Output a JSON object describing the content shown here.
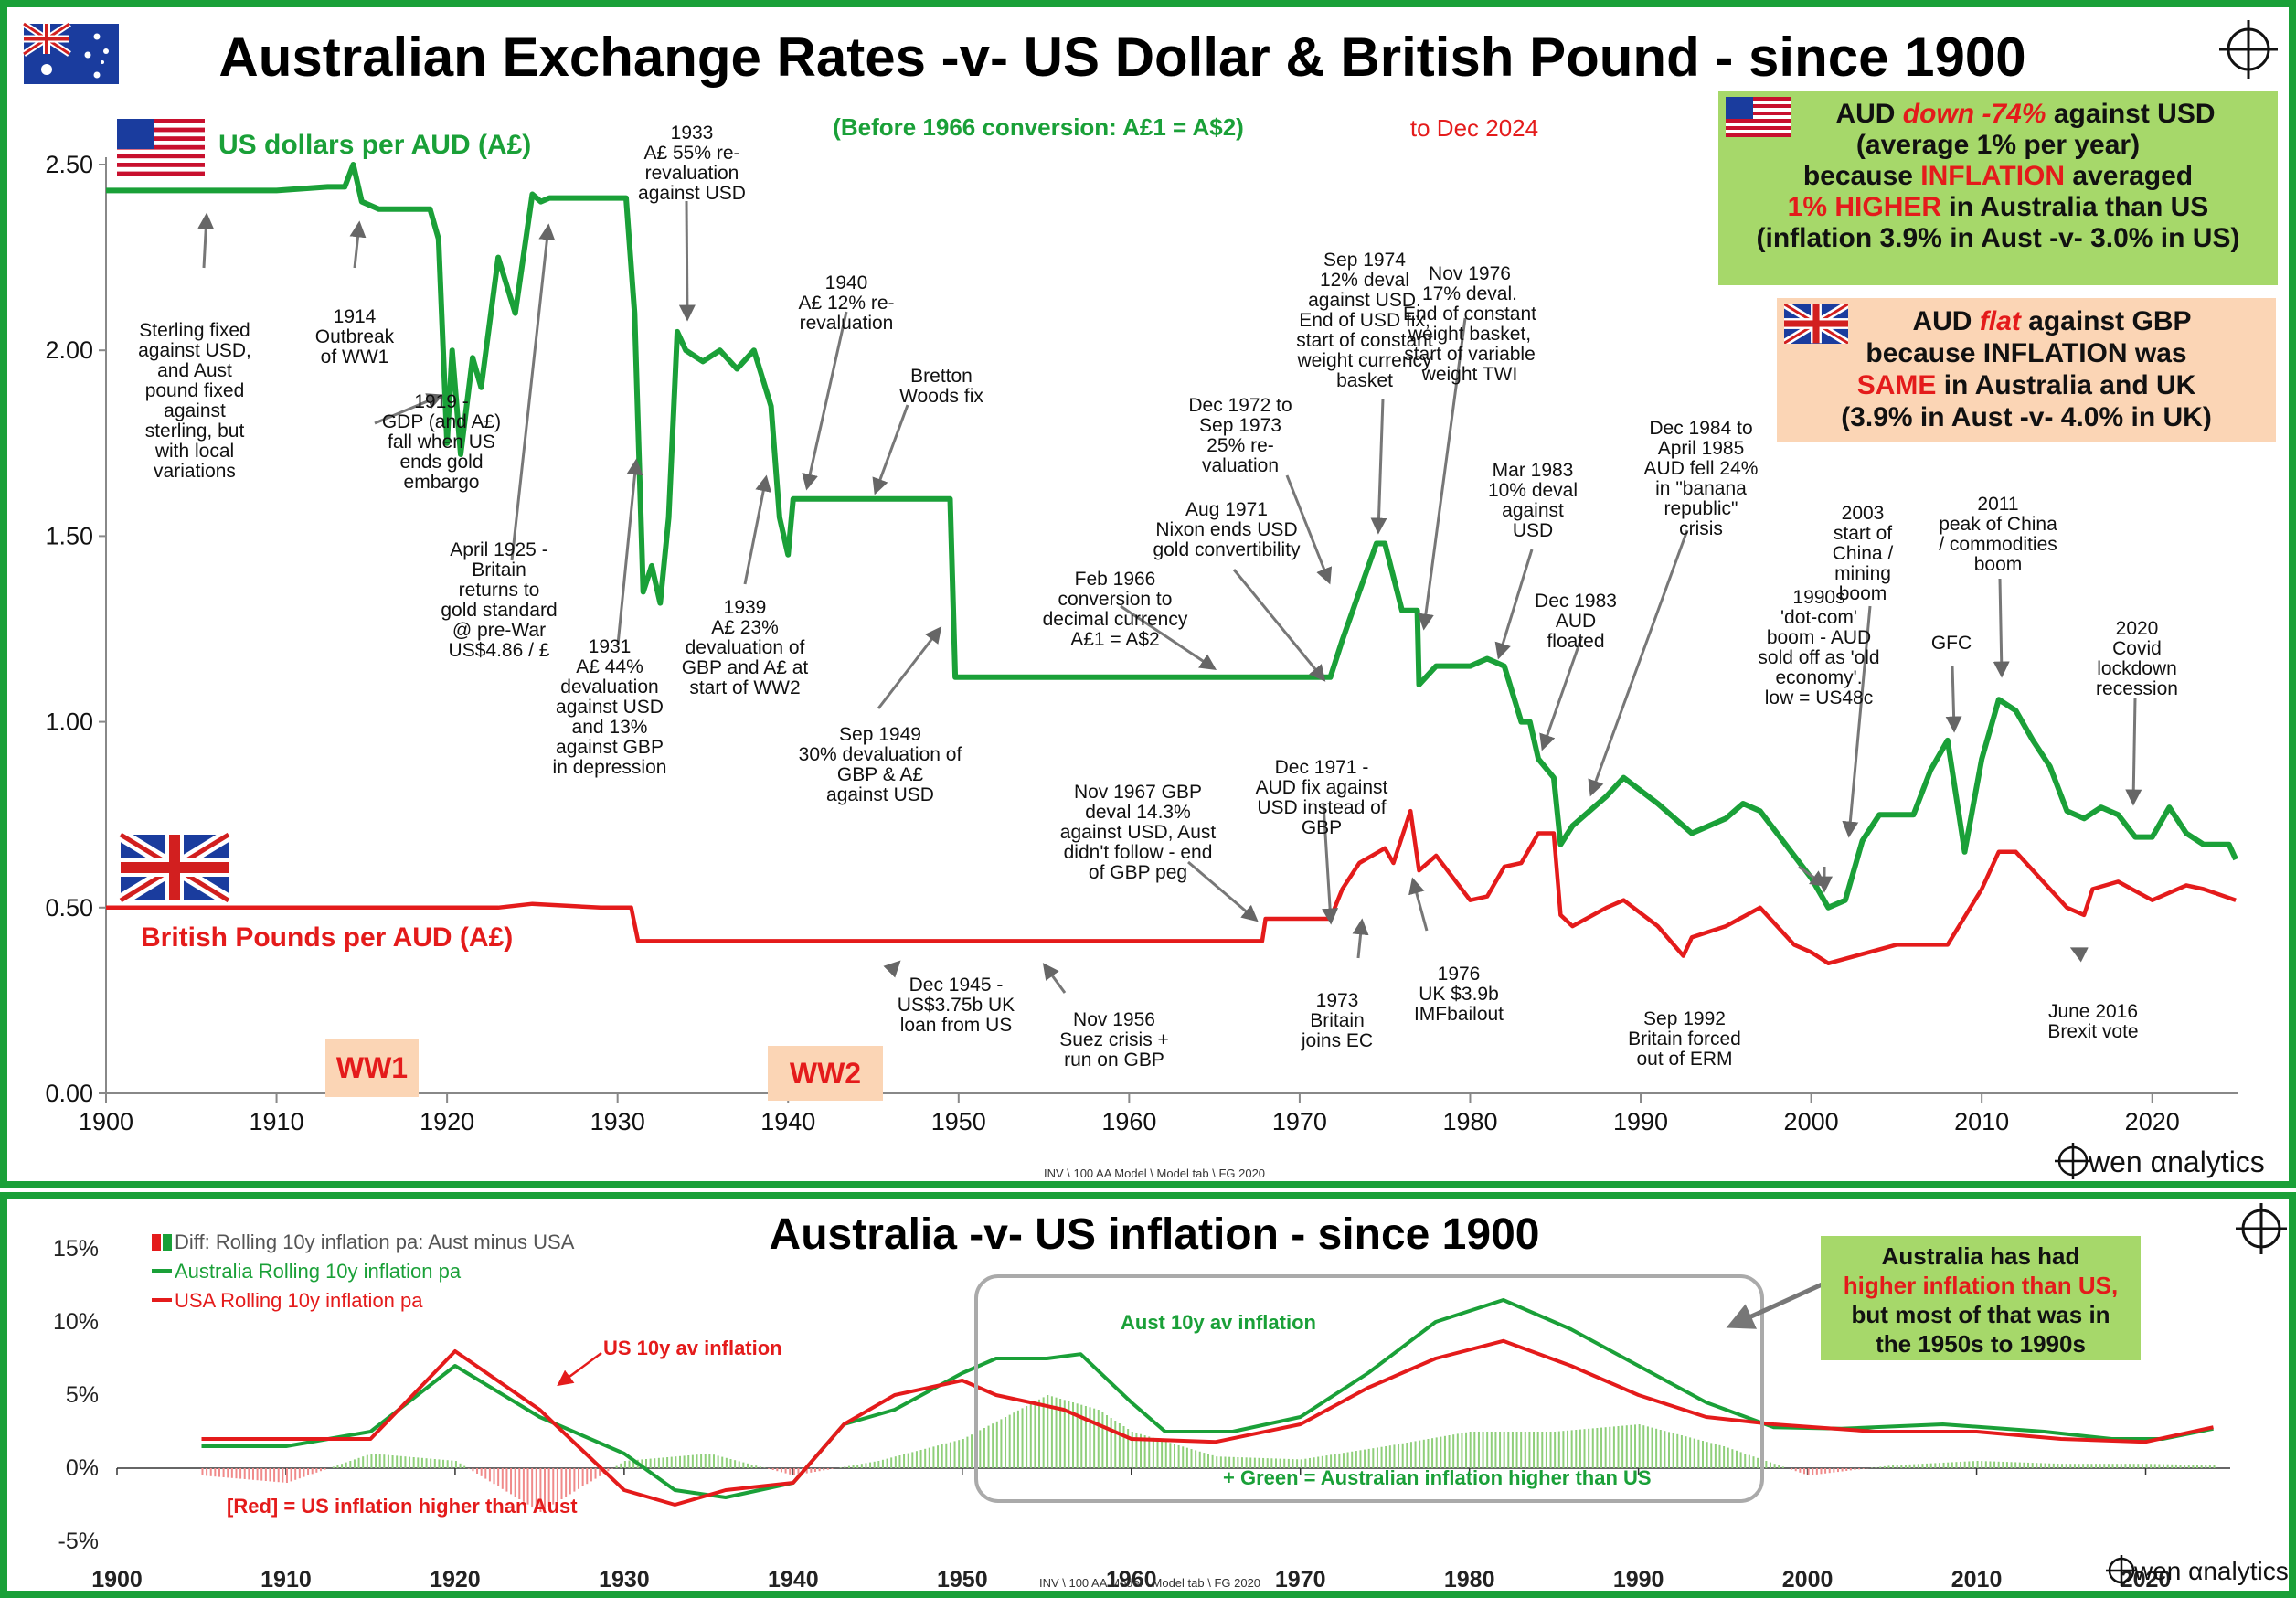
{
  "top": {
    "title": "Australian Exchange Rates -v- US Dollar & British Pound - since 1900",
    "subtitle_conversion": "(Before 1966 conversion: A£1 = A$2)",
    "subtitle_date": "to Dec 2024",
    "usd_label": "US dollars per AUD (A£)",
    "gbp_label": "British Pounds per AUD (A£)",
    "ww1": "WW1",
    "ww2": "WW2",
    "footer": "INV \\ 100 AA Model  \\ Model tab \\ FG 2020",
    "logo_text": "wen αnalytics",
    "box_usd": {
      "l1a": "AUD ",
      "l1b": "down -74%",
      "l1c": " against USD",
      "l2": "(average 1% per year)",
      "l3a": "because ",
      "l3b": "INFLATION",
      "l3c": " averaged",
      "l4a": "1% HIGHER",
      "l4b": " in Australia than US",
      "l5": "(inflation 3.9% in Aust -v- 3.0% in US)"
    },
    "box_gbp": {
      "l1a": "AUD ",
      "l1b": "flat",
      "l1c": " against GBP",
      "l2": "because INFLATION was",
      "l3a": "SAME",
      "l3b": " in Australia and UK",
      "l4": "(3.9% in Aust -v- 4.0% in UK)"
    },
    "annotations": [
      {
        "lines": [
          "Sterling fixed",
          "against USD,",
          "and Aust",
          "pound fixed",
          "against",
          "sterling, but",
          "with local",
          "variations"
        ]
      },
      {
        "lines": [
          "1914",
          "Outbreak",
          "of WW1"
        ]
      },
      {
        "lines": [
          "1919 -",
          "GDP (and A£)",
          "fall when US",
          "ends gold",
          "embargo"
        ]
      },
      {
        "lines": [
          "April 1925 -",
          "Britain",
          "returns to",
          "gold standard",
          "@ pre-War",
          "US$4.86 / £"
        ]
      },
      {
        "lines": [
          "1931",
          "A£ 44%",
          "devaluation",
          "against USD",
          "and 13%",
          "against GBP",
          "in depression"
        ]
      },
      {
        "lines": [
          "1933",
          "A£ 55% re-",
          "revaluation",
          "against USD"
        ]
      },
      {
        "lines": [
          "1939",
          "A£ 23%",
          "devaluation of",
          "GBP and  A£ at",
          "start of WW2"
        ]
      },
      {
        "lines": [
          "1940",
          "A£ 12% re-",
          "revaluation"
        ]
      },
      {
        "lines": [
          "Bretton",
          "Woods fix"
        ]
      },
      {
        "lines": [
          "Sep 1949",
          "30% devaluation of",
          "GBP & A£",
          "against USD"
        ]
      },
      {
        "lines": [
          "Dec 1945 -",
          "US$3.75b UK",
          "loan from US"
        ]
      },
      {
        "lines": [
          "Nov 1956",
          "Suez crisis +",
          "run on GBP"
        ]
      },
      {
        "lines": [
          "Feb 1966",
          "conversion to",
          "decimal currency",
          "A£1 = A$2"
        ]
      },
      {
        "lines": [
          "Nov 1967 GBP",
          "deval 14.3%",
          "against USD, Aust",
          "didn't follow - end",
          "of GBP peg"
        ]
      },
      {
        "lines": [
          "Aug 1971",
          "Nixon ends USD",
          "gold convertibility"
        ]
      },
      {
        "lines": [
          "Dec 1972 to",
          "Sep 1973",
          "25% re-",
          "valuation"
        ]
      },
      {
        "lines": [
          "Dec 1971 -",
          "AUD fix against",
          "USD instead of",
          "GBP"
        ]
      },
      {
        "lines": [
          "Sep 1974",
          "12% deval",
          "against USD.",
          "End of USD fix,",
          "start of constant",
          "weight currency",
          "basket"
        ]
      },
      {
        "lines": [
          "Nov 1976",
          "17% deval.",
          "End of constant",
          "weight basket,",
          "start of variable",
          "weight TWI"
        ]
      },
      {
        "lines": [
          "1973",
          "Britain",
          "joins EC"
        ]
      },
      {
        "lines": [
          "1976",
          "UK $3.9b",
          "IMFbailout"
        ]
      },
      {
        "lines": [
          "Mar 1983",
          "10% deval",
          "against",
          "USD"
        ]
      },
      {
        "lines": [
          "Dec 1983",
          "AUD",
          "floated"
        ]
      },
      {
        "lines": [
          "Dec 1984 to",
          "April 1985",
          "AUD fell 24%",
          "in \"banana",
          "republic\"",
          "crisis"
        ]
      },
      {
        "lines": [
          "Sep 1992",
          "Britain forced",
          "out of ERM"
        ]
      },
      {
        "lines": [
          "1990s",
          "'dot-com'",
          "boom - AUD",
          "sold off as 'old",
          "economy'.",
          "low = US48c"
        ]
      },
      {
        "lines": [
          "2003",
          "start of",
          "China /",
          "mining",
          "boom"
        ]
      },
      {
        "lines": [
          "GFC"
        ]
      },
      {
        "lines": [
          "2011",
          "peak of China",
          "/ commodities",
          "boom"
        ]
      },
      {
        "lines": [
          "2020",
          "Covid",
          "lockdown",
          "recession"
        ]
      },
      {
        "lines": [
          "June 2016",
          "Brexit vote"
        ]
      }
    ]
  },
  "bottom": {
    "title": "Australia -v- US inflation - since 1900",
    "legend_diff": "Diff: Rolling 10y inflation pa: Aust minus USA",
    "legend_aus": "Australia  Rolling 10y inflation pa",
    "legend_usa": "USA  Rolling 10y inflation pa",
    "label_us": "US 10y av inflation",
    "label_aus": "Aust 10y av inflation",
    "label_green": "+ Green = Australian inflation higher than US",
    "label_red": "[Red] = US inflation higher than Aust",
    "box": {
      "l1": "Australia has had",
      "l2": "higher inflation than US,",
      "l3": "but most of that was in",
      "l4": "the 1950s to 1990s"
    },
    "footer": "INV \\ 100 AA Model  \\ Model tab \\ FG 2020",
    "logo_text": "wen αnalytics"
  },
  "colors": {
    "green": "#1aa038",
    "red": "#e41b1b",
    "box_green": "#a6d86a",
    "box_peach": "#fbd5b5",
    "diff_green": "#8fcf7a",
    "diff_red": "#f08a8a"
  },
  "chart_data": [
    {
      "type": "line",
      "approximate": true,
      "title": "Australian Exchange Rates -v- US Dollar & British Pound - since 1900",
      "ylim": [
        0,
        2.5
      ],
      "yticks": [
        "0.00",
        "0.50",
        "1.00",
        "1.50",
        "2.00",
        "2.50"
      ],
      "xlim": [
        1900,
        2025
      ],
      "xticks": [
        "1900",
        "1910",
        "1920",
        "1930",
        "1940",
        "1950",
        "1960",
        "1970",
        "1980",
        "1990",
        "2000",
        "2010",
        "2020"
      ],
      "series": [
        {
          "name": "US dollars per AUD (A£)",
          "color": "#1aa038",
          "x": [
            1900,
            1905,
            1910,
            1913,
            1914,
            1914.5,
            1915,
            1916,
            1919,
            1919.5,
            1920,
            1920.3,
            1920.8,
            1921.5,
            1922,
            1923,
            1924,
            1925,
            1925.5,
            1926,
            1929,
            1930.5,
            1931,
            1931.5,
            1932,
            1932.5,
            1933,
            1933.5,
            1934,
            1935,
            1936,
            1937,
            1938,
            1939,
            1939.5,
            1940,
            1940.3,
            1941,
            1945,
            1949.5,
            1949.8,
            1955,
            1960,
            1966,
            1971,
            1971.8,
            1972.5,
            1973.5,
            1974.5,
            1975,
            1976,
            1976.9,
            1977,
            1978,
            1980,
            1981,
            1982,
            1983,
            1983.5,
            1984,
            1984.9,
            1985.3,
            1986,
            1988,
            1989,
            1991,
            1993,
            1995,
            1996,
            1997,
            1999,
            2000,
            2001,
            2002,
            2003,
            2004,
            2006,
            2007,
            2008,
            2009,
            2010,
            2011,
            2012,
            2013,
            2014,
            2015,
            2016,
            2017,
            2018,
            2019,
            2020,
            2021,
            2022,
            2023,
            2024.5,
            2024.9
          ],
          "y": [
            2.43,
            2.43,
            2.43,
            2.44,
            2.44,
            2.5,
            2.4,
            2.38,
            2.38,
            2.3,
            1.75,
            2.0,
            1.72,
            1.98,
            1.9,
            2.25,
            2.1,
            2.42,
            2.4,
            2.41,
            2.41,
            2.41,
            2.1,
            1.35,
            1.42,
            1.32,
            1.55,
            2.05,
            2.0,
            1.97,
            2.0,
            1.95,
            2.0,
            1.85,
            1.55,
            1.45,
            1.6,
            1.6,
            1.6,
            1.6,
            1.12,
            1.12,
            1.12,
            1.12,
            1.12,
            1.12,
            1.22,
            1.35,
            1.48,
            1.48,
            1.3,
            1.3,
            1.1,
            1.15,
            1.15,
            1.17,
            1.15,
            1.0,
            1.0,
            0.9,
            0.85,
            0.67,
            0.72,
            0.8,
            0.85,
            0.78,
            0.7,
            0.74,
            0.78,
            0.76,
            0.64,
            0.58,
            0.5,
            0.52,
            0.68,
            0.75,
            0.75,
            0.87,
            0.95,
            0.65,
            0.9,
            1.06,
            1.03,
            0.95,
            0.88,
            0.76,
            0.74,
            0.77,
            0.75,
            0.69,
            0.69,
            0.77,
            0.7,
            0.67,
            0.67,
            0.63
          ]
        },
        {
          "name": "British Pounds per AUD (A£)",
          "color": "#e41b1b",
          "x": [
            1900,
            1910,
            1920,
            1923,
            1925,
            1929,
            1930.8,
            1931.2,
            1940,
            1945,
            1950,
            1960,
            1967.8,
            1968,
            1971,
            1971.8,
            1972.5,
            1973.5,
            1975,
            1975.5,
            1976.5,
            1977,
            1978,
            1980,
            1981,
            1982,
            1983,
            1984,
            1984.9,
            1985.3,
            1986,
            1988,
            1989,
            1991,
            1992.5,
            1993,
            1995,
            1997,
            1999,
            2000,
            2001,
            2005,
            2008,
            2010,
            2011,
            2012,
            2014,
            2015,
            2016,
            2016.5,
            2018,
            2020,
            2022,
            2023,
            2024.9
          ],
          "y": [
            0.5,
            0.5,
            0.5,
            0.5,
            0.51,
            0.5,
            0.5,
            0.41,
            0.41,
            0.41,
            0.41,
            0.41,
            0.41,
            0.47,
            0.47,
            0.47,
            0.55,
            0.62,
            0.66,
            0.62,
            0.76,
            0.6,
            0.64,
            0.52,
            0.53,
            0.61,
            0.62,
            0.7,
            0.7,
            0.48,
            0.45,
            0.5,
            0.52,
            0.45,
            0.37,
            0.42,
            0.45,
            0.5,
            0.4,
            0.38,
            0.35,
            0.4,
            0.4,
            0.55,
            0.65,
            0.65,
            0.55,
            0.5,
            0.48,
            0.55,
            0.57,
            0.52,
            0.56,
            0.55,
            0.52
          ]
        }
      ]
    },
    {
      "type": "line",
      "approximate": true,
      "title": "Australia -v- US inflation - since 1900",
      "ylim": [
        -5,
        15
      ],
      "yticks": [
        "-5%",
        "0%",
        "5%",
        "10%",
        "15%"
      ],
      "xlim": [
        1900,
        2025
      ],
      "xticks": [
        "1900",
        "1910",
        "1920",
        "1930",
        "1940",
        "1950",
        "1960",
        "1970",
        "1980",
        "1990",
        "2000",
        "2010",
        "2020"
      ],
      "series": [
        {
          "name": "Australia  Rolling 10y inflation pa",
          "color": "#1aa038",
          "x": [
            1905,
            1910,
            1915,
            1920,
            1925,
            1930,
            1933,
            1936,
            1940,
            1943,
            1946,
            1950,
            1952,
            1955,
            1957,
            1960,
            1962,
            1966,
            1970,
            1974,
            1978,
            1982,
            1986,
            1990,
            1994,
            1998,
            2002,
            2008,
            2014,
            2018,
            2021,
            2024
          ],
          "y": [
            1.5,
            1.5,
            2.5,
            7,
            3.5,
            1,
            -1.5,
            -2,
            -1,
            3,
            4,
            6.5,
            7.5,
            7.5,
            7.8,
            4.5,
            2.5,
            2.5,
            3.5,
            6.5,
            10,
            11.5,
            9.5,
            7,
            4.5,
            2.8,
            2.7,
            3,
            2.5,
            2,
            2,
            2.7
          ]
        },
        {
          "name": "USA  Rolling 10y inflation pa",
          "color": "#e41b1b",
          "x": [
            1905,
            1910,
            1915,
            1920,
            1925,
            1930,
            1933,
            1936,
            1940,
            1943,
            1946,
            1950,
            1952,
            1956,
            1960,
            1965,
            1970,
            1974,
            1978,
            1982,
            1986,
            1990,
            1994,
            1998,
            2004,
            2010,
            2015,
            2020,
            2024
          ],
          "y": [
            2,
            2,
            2,
            8,
            4,
            -1.5,
            -2.5,
            -1.5,
            -1,
            3,
            5,
            6,
            5,
            4,
            2,
            1.8,
            3,
            5.5,
            7.5,
            8.7,
            7,
            5,
            3.5,
            3,
            2.5,
            2.5,
            2,
            1.8,
            2.8
          ]
        },
        {
          "name": "Diff: Rolling 10y inflation pa: Aust minus USA",
          "x": [
            1905,
            1910,
            1915,
            1920,
            1925,
            1930,
            1935,
            1940,
            1945,
            1950,
            1955,
            1958,
            1960,
            1965,
            1970,
            1975,
            1980,
            1985,
            1990,
            1995,
            2000,
            2005,
            2010,
            2015,
            2020,
            2024
          ],
          "y": [
            -0.5,
            -1,
            1,
            0.5,
            -3,
            0.5,
            1,
            -0.5,
            0.5,
            2,
            5,
            4,
            2.5,
            0.8,
            0.6,
            1.5,
            2.5,
            2.5,
            3,
            1.5,
            -0.5,
            0.2,
            0.5,
            0.3,
            0.3,
            0.2
          ]
        }
      ]
    }
  ]
}
